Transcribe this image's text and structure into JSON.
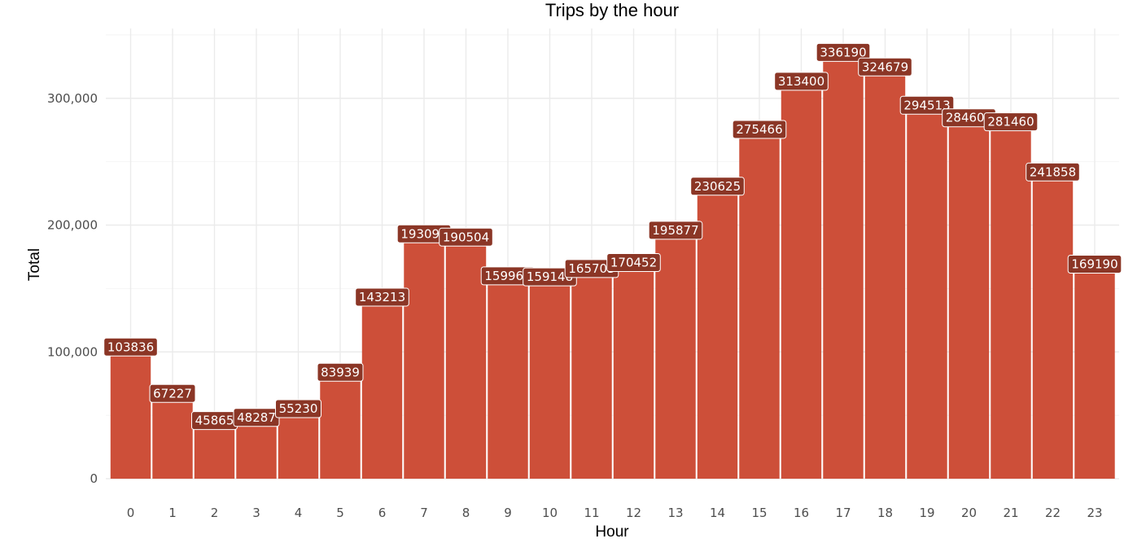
{
  "chart_data": {
    "type": "bar",
    "title": "Trips by the hour",
    "xlabel": "Hour",
    "ylabel": "Total",
    "categories": [
      "0",
      "1",
      "2",
      "3",
      "4",
      "5",
      "6",
      "7",
      "8",
      "9",
      "10",
      "11",
      "12",
      "13",
      "14",
      "15",
      "16",
      "17",
      "18",
      "19",
      "20",
      "21",
      "22",
      "23"
    ],
    "values": [
      103836,
      67227,
      45865,
      48287,
      55230,
      83939,
      143213,
      193094,
      190504,
      159967,
      159148,
      165703,
      170452,
      195877,
      230625,
      275466,
      313400,
      336190,
      324679,
      294513,
      284604,
      281460,
      241858,
      169190
    ],
    "data_labels": [
      "103836",
      "67227",
      "45865",
      "48287",
      "55230",
      "83939",
      "143213",
      "193094",
      "190504",
      "159967",
      "159148",
      "165703",
      "170452",
      "195877",
      "230625",
      "275466",
      "313400",
      "336190",
      "324679",
      "294513",
      "284604",
      "281460",
      "241858",
      "169190"
    ],
    "ylim": [
      0,
      350000
    ],
    "y_ticks": [
      0,
      100000,
      200000,
      300000
    ],
    "y_tick_labels": [
      "0",
      "100,000",
      "200,000",
      "300,000"
    ],
    "grid": true,
    "legend": "none",
    "colors": {
      "bar": "#cd4f39",
      "label_fill": "#8b3626",
      "label_text": "#ffffff"
    }
  }
}
